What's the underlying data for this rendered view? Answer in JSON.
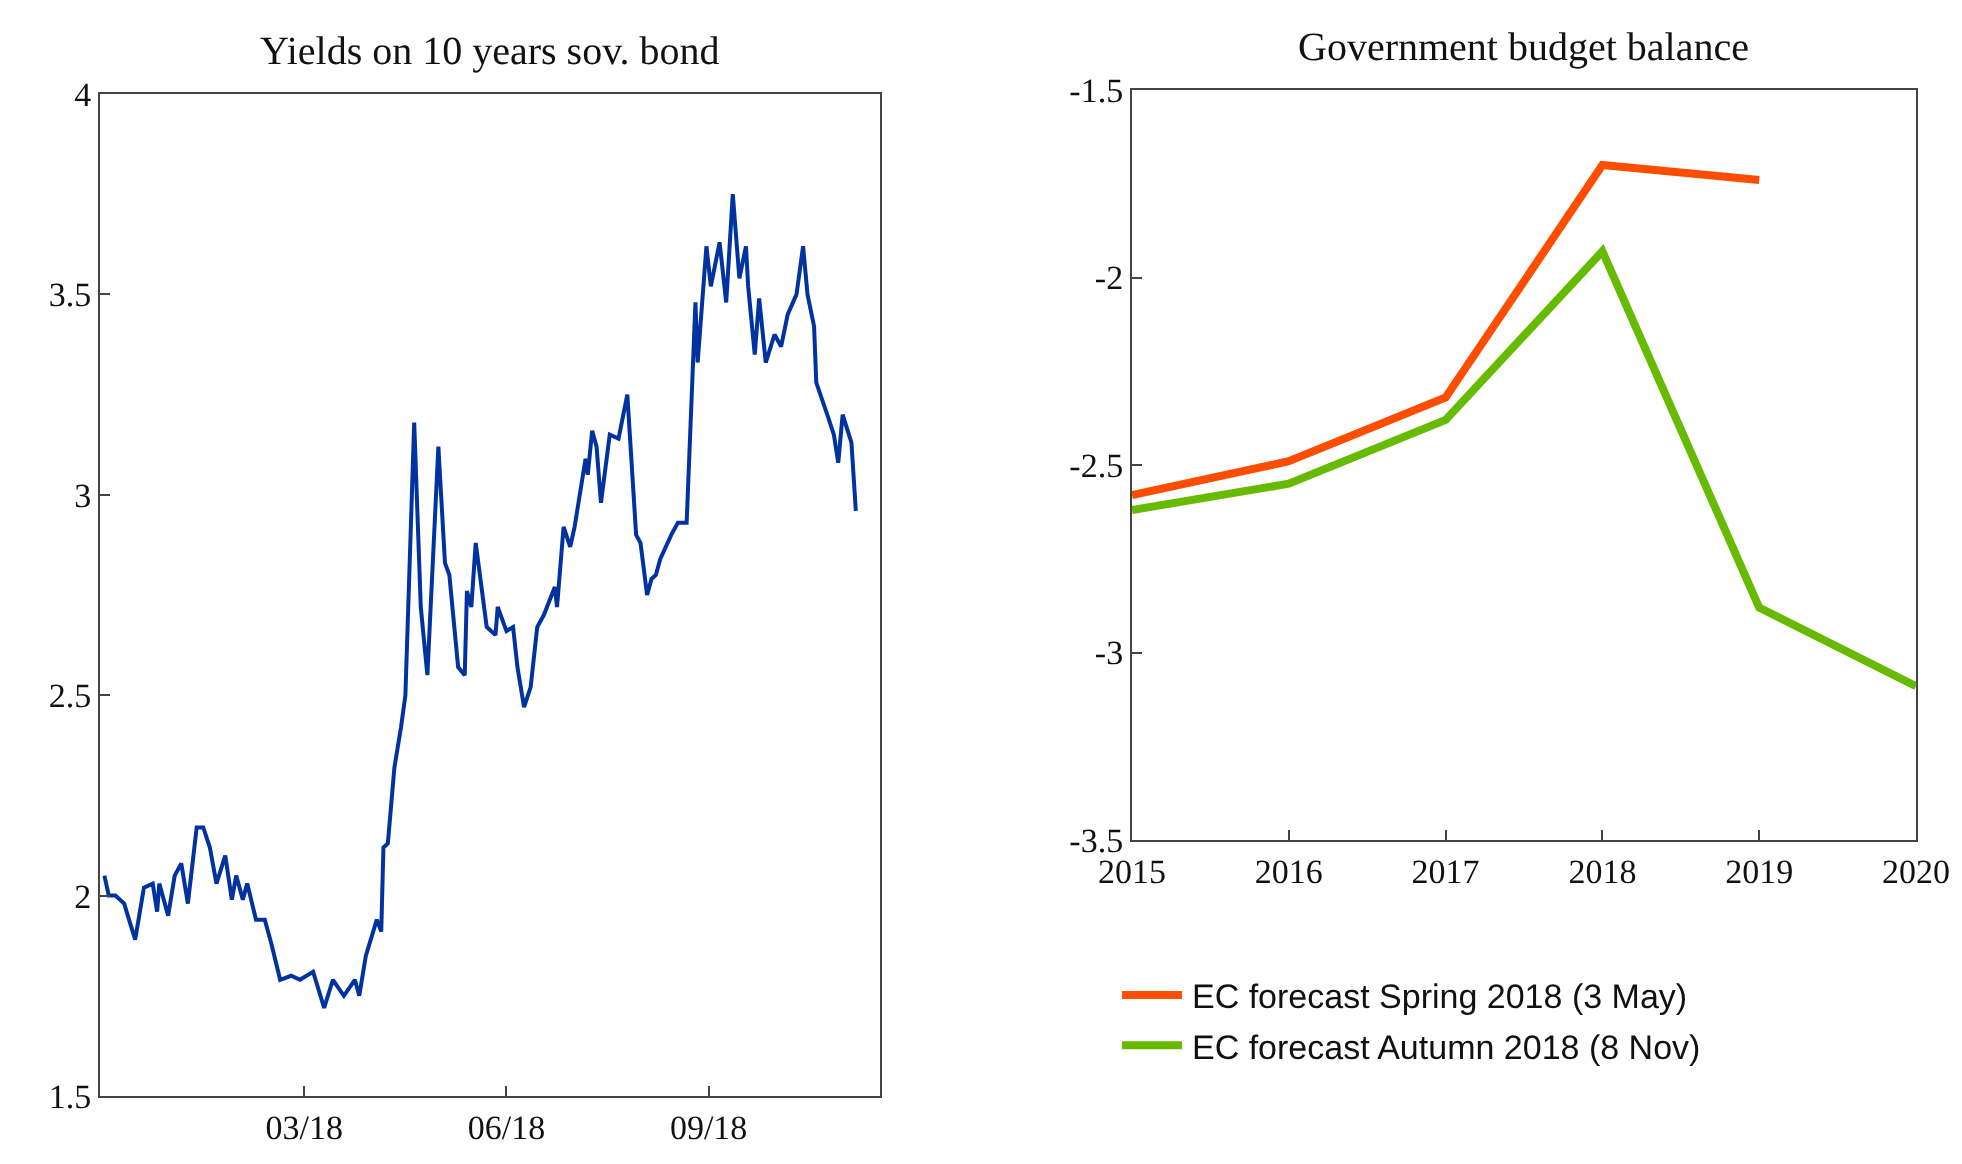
{
  "chart_data": [
    {
      "type": "line",
      "title": "Yields on 10 years sov. bond",
      "series": [
        {
          "color": "#0033a0",
          "x": [
            "2017-11-30",
            "2017-12-02",
            "2017-12-05",
            "2017-12-09",
            "2017-12-14",
            "2017-12-18",
            "2017-12-22",
            "2017-12-24",
            "2017-12-25",
            "2017-12-29",
            "2018-01-01",
            "2018-01-04",
            "2018-01-07",
            "2018-01-11",
            "2018-01-14",
            "2018-01-17",
            "2018-01-20",
            "2018-01-24",
            "2018-01-27",
            "2018-01-29",
            "2018-02-01",
            "2018-02-03",
            "2018-02-07",
            "2018-02-11",
            "2018-02-14",
            "2018-02-18",
            "2018-02-23",
            "2018-02-27",
            "2018-03-05",
            "2018-03-10",
            "2018-03-14",
            "2018-03-19",
            "2018-03-24",
            "2018-03-26",
            "2018-03-29",
            "2018-04-03",
            "2018-04-05",
            "2018-04-06",
            "2018-04-08",
            "2018-04-11",
            "2018-04-14",
            "2018-04-16",
            "2018-04-20",
            "2018-04-23",
            "2018-04-26",
            "2018-05-01",
            "2018-05-04",
            "2018-05-06",
            "2018-05-10",
            "2018-05-13",
            "2018-05-14",
            "2018-05-16",
            "2018-05-18",
            "2018-05-23",
            "2018-05-27",
            "2018-05-28",
            "2018-06-01",
            "2018-06-04",
            "2018-06-06",
            "2018-06-09",
            "2018-06-12",
            "2018-06-15",
            "2018-06-18",
            "2018-06-23",
            "2018-06-24",
            "2018-06-27",
            "2018-06-30",
            "2018-07-02",
            "2018-07-07",
            "2018-07-08",
            "2018-07-10",
            "2018-07-12",
            "2018-07-14",
            "2018-07-18",
            "2018-07-22",
            "2018-07-26",
            "2018-07-30",
            "2018-08-01",
            "2018-08-04",
            "2018-08-06",
            "2018-08-08",
            "2018-08-10",
            "2018-08-15",
            "2018-08-18",
            "2018-08-22",
            "2018-08-26",
            "2018-08-27",
            "2018-08-31",
            "2018-09-02",
            "2018-09-06",
            "2018-09-09",
            "2018-09-12",
            "2018-09-15",
            "2018-09-18",
            "2018-09-19",
            "2018-09-22",
            "2018-09-24",
            "2018-09-27",
            "2018-10-01",
            "2018-10-04",
            "2018-10-07",
            "2018-10-11",
            "2018-10-14",
            "2018-10-16",
            "2018-10-19",
            "2018-10-20",
            "2018-10-25",
            "2018-10-28",
            "2018-10-30",
            "2018-11-01",
            "2018-11-05",
            "2018-11-07"
          ],
          "values": [
            2.05,
            2.0,
            2.0,
            1.98,
            1.89,
            2.02,
            2.03,
            1.96,
            2.03,
            1.95,
            2.05,
            2.08,
            1.98,
            2.17,
            2.17,
            2.12,
            2.03,
            2.1,
            1.99,
            2.05,
            1.99,
            2.03,
            1.94,
            1.94,
            1.88,
            1.79,
            1.8,
            1.79,
            1.81,
            1.72,
            1.79,
            1.75,
            1.79,
            1.75,
            1.85,
            1.94,
            1.91,
            2.12,
            2.13,
            2.32,
            2.42,
            2.5,
            3.18,
            2.72,
            2.55,
            3.12,
            2.83,
            2.8,
            2.57,
            2.55,
            2.76,
            2.72,
            2.88,
            2.67,
            2.65,
            2.72,
            2.66,
            2.67,
            2.57,
            2.47,
            2.52,
            2.67,
            2.7,
            2.77,
            2.72,
            2.92,
            2.87,
            2.92,
            3.09,
            3.05,
            3.16,
            3.12,
            2.98,
            3.15,
            3.14,
            3.25,
            2.9,
            2.88,
            2.75,
            2.79,
            2.8,
            2.84,
            2.9,
            2.93,
            2.93,
            3.48,
            3.33,
            3.62,
            3.52,
            3.63,
            3.48,
            3.75,
            3.54,
            3.62,
            3.52,
            3.35,
            3.49,
            3.33,
            3.4,
            3.37,
            3.45,
            3.5,
            3.62,
            3.5,
            3.42,
            3.28,
            3.2,
            3.15,
            3.08,
            3.2,
            3.13,
            2.96
          ]
        }
      ],
      "xlim": [
        "2017-11-28",
        "2018-11-18"
      ],
      "xticks": [
        {
          "value": "2018-03-01",
          "label": "03/18"
        },
        {
          "value": "2018-06-01",
          "label": "06/18"
        },
        {
          "value": "2018-09-01",
          "label": "09/18"
        }
      ],
      "ylim": [
        1.5,
        4
      ],
      "yticks": [
        1.5,
        2,
        2.5,
        3,
        3.5,
        4
      ],
      "legend": false
    },
    {
      "type": "line",
      "title": "Government budget balance",
      "x": [
        2015,
        2016,
        2017,
        2018,
        2019,
        2020
      ],
      "series": [
        {
          "name": "EC forecast Spring 2018 (3 May)",
          "color": "#ff4d00",
          "values": [
            -2.58,
            -2.49,
            -2.32,
            -1.7,
            -1.74,
            null
          ]
        },
        {
          "name": "EC forecast Autumn 2018 (8 Nov)",
          "color": "#66bb00",
          "values": [
            -2.62,
            -2.55,
            -2.38,
            -1.93,
            -2.88,
            -3.09
          ]
        }
      ],
      "xlim": [
        2015,
        2020
      ],
      "xticks": [
        2015,
        2016,
        2017,
        2018,
        2019,
        2020
      ],
      "ylim": [
        -3.5,
        -1.5
      ],
      "yticks": [
        -3.5,
        -3,
        -2.5,
        -2,
        -1.5
      ],
      "legend": "bottom"
    }
  ]
}
